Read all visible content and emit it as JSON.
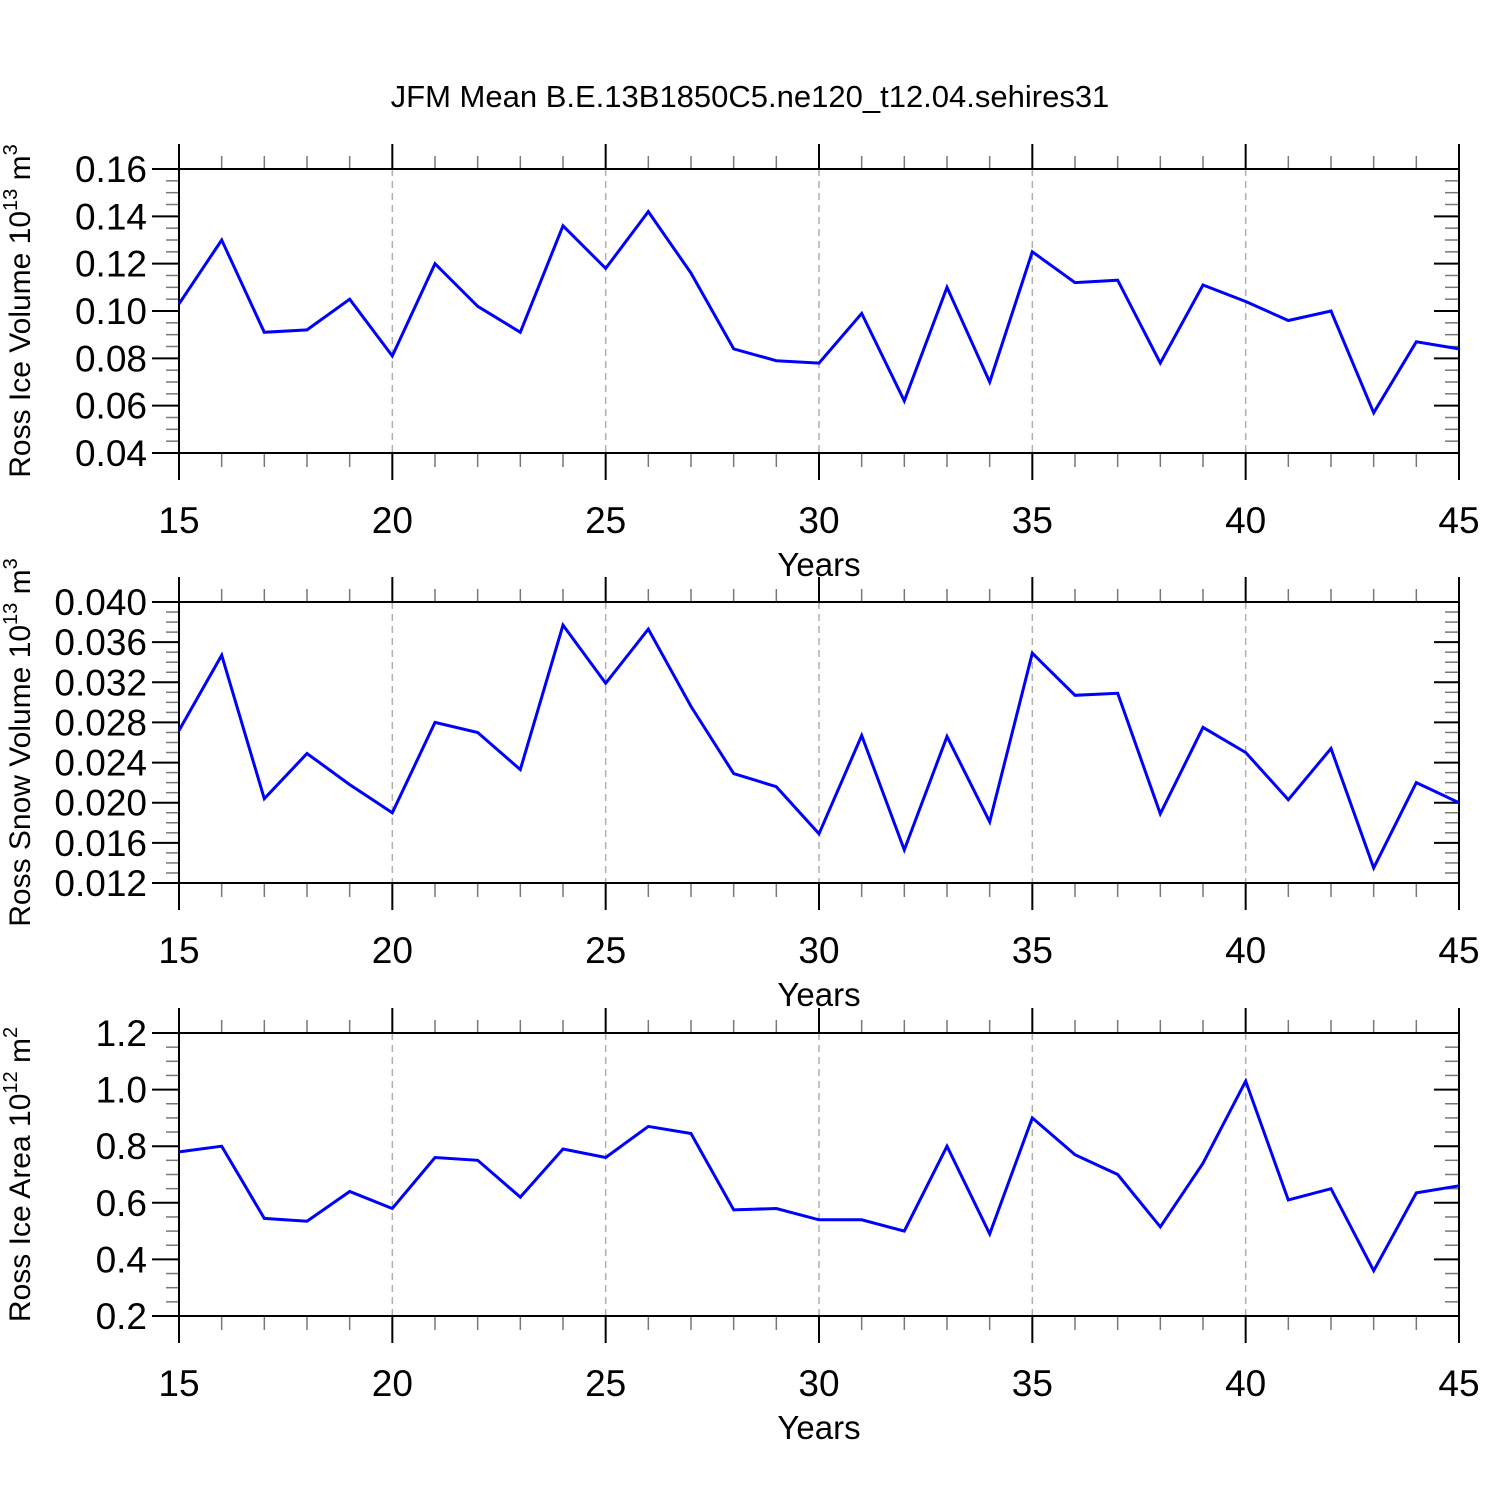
{
  "title": "JFM Mean B.E.13B1850C5.ne120_t12.04.sehires31",
  "line_color": "#0000ff",
  "grid_color": "#b0b0b0",
  "axis_color": "#000000",
  "chart_data": [
    {
      "type": "line",
      "ylabel": "Ross Ice Volume 10^13 m^3",
      "ylabel_parts": [
        {
          "t": "Ross Ice Volume 10",
          "sup": false
        },
        {
          "t": "13",
          "sup": true
        },
        {
          "t": " m",
          "sup": false
        },
        {
          "t": "3",
          "sup": true
        }
      ],
      "xlabel": "Years",
      "x": [
        15,
        16,
        17,
        18,
        19,
        20,
        21,
        22,
        23,
        24,
        25,
        26,
        27,
        28,
        29,
        30,
        31,
        32,
        33,
        34,
        35,
        36,
        37,
        38,
        39,
        40,
        41,
        42,
        43,
        44,
        45
      ],
      "values": [
        0.103,
        0.13,
        0.091,
        0.092,
        0.105,
        0.081,
        0.12,
        0.102,
        0.091,
        0.136,
        0.118,
        0.142,
        0.116,
        0.084,
        0.079,
        0.078,
        0.099,
        0.062,
        0.11,
        0.07,
        0.125,
        0.112,
        0.113,
        0.078,
        0.111,
        0.104,
        0.096,
        0.1,
        0.057,
        0.087,
        0.084
      ],
      "xlim": [
        15,
        45
      ],
      "ylim": [
        0.04,
        0.16
      ],
      "ytick_step": 0.02,
      "yminor_step": 0.005,
      "ytick_decimals": 2,
      "xticks": [
        15,
        20,
        25,
        30,
        35,
        40,
        45
      ],
      "xminor_step": 1,
      "grid_x": [
        20,
        25,
        30,
        35,
        40
      ],
      "grid": true,
      "legend": null,
      "line_color": "#0000ff"
    },
    {
      "type": "line",
      "ylabel": "Ross Snow Volume 10^13 m^3",
      "ylabel_parts": [
        {
          "t": "Ross Snow Volume 10",
          "sup": false
        },
        {
          "t": "13",
          "sup": true
        },
        {
          "t": " m",
          "sup": false
        },
        {
          "t": "3",
          "sup": true
        }
      ],
      "xlabel": "Years",
      "x": [
        15,
        16,
        17,
        18,
        19,
        20,
        21,
        22,
        23,
        24,
        25,
        26,
        27,
        28,
        29,
        30,
        31,
        32,
        33,
        34,
        35,
        36,
        37,
        38,
        39,
        40,
        41,
        42,
        43,
        44,
        45
      ],
      "values": [
        0.0272,
        0.0347,
        0.0204,
        0.0249,
        0.0218,
        0.019,
        0.028,
        0.027,
        0.0233,
        0.0377,
        0.0319,
        0.0373,
        0.0296,
        0.0229,
        0.0216,
        0.0169,
        0.0267,
        0.0153,
        0.0266,
        0.0181,
        0.0349,
        0.0307,
        0.0309,
        0.0189,
        0.0275,
        0.025,
        0.0203,
        0.0254,
        0.0135,
        0.022,
        0.02
      ],
      "xlim": [
        15,
        45
      ],
      "ylim": [
        0.012,
        0.04
      ],
      "ytick_step": 0.004,
      "yminor_step": 0.001,
      "ytick_decimals": 3,
      "xticks": [
        15,
        20,
        25,
        30,
        35,
        40,
        45
      ],
      "xminor_step": 1,
      "grid_x": [
        20,
        25,
        30,
        35,
        40
      ],
      "grid": true,
      "legend": null,
      "line_color": "#0000ff"
    },
    {
      "type": "line",
      "ylabel": "Ross Ice Area 10^12 m^2",
      "ylabel_parts": [
        {
          "t": "Ross Ice Area 10",
          "sup": false
        },
        {
          "t": "12",
          "sup": true
        },
        {
          "t": " m",
          "sup": false
        },
        {
          "t": "2",
          "sup": true
        }
      ],
      "xlabel": "Years",
      "x": [
        15,
        16,
        17,
        18,
        19,
        20,
        21,
        22,
        23,
        24,
        25,
        26,
        27,
        28,
        29,
        30,
        31,
        32,
        33,
        34,
        35,
        36,
        37,
        38,
        39,
        40,
        41,
        42,
        43,
        44,
        45
      ],
      "values": [
        0.78,
        0.8,
        0.545,
        0.535,
        0.64,
        0.58,
        0.76,
        0.75,
        0.62,
        0.79,
        0.76,
        0.87,
        0.845,
        0.575,
        0.58,
        0.54,
        0.54,
        0.5,
        0.8,
        0.49,
        0.9,
        0.77,
        0.7,
        0.515,
        0.74,
        1.03,
        0.61,
        0.65,
        0.36,
        0.635,
        0.66
      ],
      "xlim": [
        15,
        45
      ],
      "ylim": [
        0.2,
        1.2
      ],
      "ytick_step": 0.2,
      "yminor_step": 0.05,
      "ytick_decimals": 1,
      "xticks": [
        15,
        20,
        25,
        30,
        35,
        40,
        45
      ],
      "xminor_step": 1,
      "grid_x": [
        20,
        25,
        30,
        35,
        40
      ],
      "grid": true,
      "legend": null,
      "line_color": "#0000ff"
    }
  ]
}
